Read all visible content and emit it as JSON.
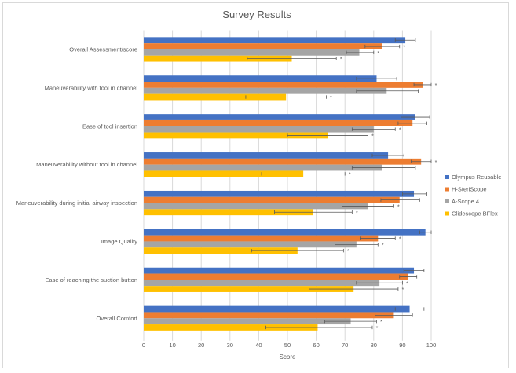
{
  "chart_data": {
    "type": "bar",
    "orientation": "horizontal",
    "title": "Survey Results",
    "xlabel": "Score",
    "ylabel": "",
    "xlim": [
      0,
      100
    ],
    "xticks": [
      0,
      10,
      20,
      30,
      40,
      50,
      60,
      70,
      80,
      90,
      100
    ],
    "grid": true,
    "legend_position": "right",
    "categories": [
      "Overall Assessment/score",
      "Maneuverability with tool in channel",
      "Ease of tool insertion",
      "Maneuverability without tool in channel",
      "Maneuverability during initial airway inspection",
      "Image Quality",
      "Ease of reaching the suction button",
      "Overall Comfort"
    ],
    "significance_marker": "*",
    "series": [
      {
        "name": "Olympus Reusable",
        "color": "#4472C4",
        "values": [
          91,
          81,
          94.5,
          85,
          94,
          98,
          94,
          92.5
        ],
        "error_low": [
          87.5,
          74,
          89.5,
          79.5,
          90,
          96,
          90.5,
          87.5
        ],
        "error_high": [
          94.5,
          88,
          99.5,
          90.5,
          98.5,
          100,
          97.5,
          97.5
        ],
        "significant": [
          false,
          false,
          false,
          false,
          false,
          false,
          false,
          false
        ]
      },
      {
        "name": "H-SteriScope",
        "color": "#ED7D31",
        "values": [
          83,
          97,
          93.5,
          96.5,
          89,
          81.5,
          92,
          87
        ],
        "error_low": [
          77,
          94,
          88.5,
          93,
          82.5,
          75.5,
          89,
          80.5
        ],
        "error_high": [
          89,
          100,
          98.5,
          100,
          96,
          87.5,
          95,
          93.5
        ],
        "significant": [
          true,
          true,
          false,
          true,
          false,
          true,
          false,
          false
        ]
      },
      {
        "name": "A-Scope 4",
        "color": "#A5A5A5",
        "values": [
          75,
          84.5,
          80,
          83,
          78,
          74,
          82,
          72
        ],
        "error_low": [
          70.5,
          74,
          72.5,
          72.5,
          69,
          66.5,
          74,
          63
        ],
        "error_high": [
          80,
          95.5,
          87.5,
          94.5,
          87,
          81.5,
          90,
          81
        ],
        "significant": [
          true,
          false,
          true,
          false,
          true,
          true,
          true,
          true
        ]
      },
      {
        "name": "Glidescope BFlex",
        "color": "#FFC000",
        "values": [
          51.5,
          49.5,
          64,
          55.5,
          59,
          53.5,
          73,
          60.5
        ],
        "error_low": [
          36,
          35.5,
          50,
          41,
          45.5,
          37.5,
          57.5,
          42.5
        ],
        "error_high": [
          67,
          63.5,
          78,
          70,
          72.5,
          69.5,
          88.5,
          79.5
        ],
        "significant": [
          true,
          true,
          true,
          true,
          true,
          true,
          true,
          true
        ]
      }
    ],
    "significance_offset": 4
  }
}
